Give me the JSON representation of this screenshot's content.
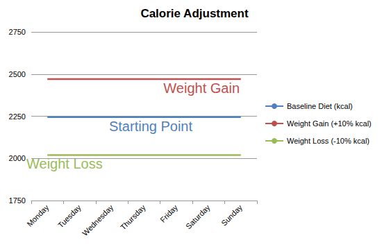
{
  "chart_data": {
    "type": "line",
    "title": "Calorie Adjustment",
    "categories": [
      "Monday",
      "Tuesday",
      "Wednesday",
      "Thursday",
      "Friday",
      "Saturday",
      "Sunday"
    ],
    "series": [
      {
        "name": "Baseline Diet (kcal)",
        "color": "#4f81bd",
        "values": [
          2245,
          2245,
          2245,
          2245,
          2245,
          2245,
          2245
        ]
      },
      {
        "name": "Weight Gain (+10% kcal)",
        "color": "#c0504d",
        "values": [
          2470,
          2470,
          2470,
          2470,
          2470,
          2470,
          2470
        ]
      },
      {
        "name": "Weight Loss (-10% kcal)",
        "color": "#9bbb59",
        "values": [
          2020,
          2020,
          2020,
          2020,
          2020,
          2020,
          2020
        ]
      }
    ],
    "annotations": [
      {
        "text": "Weight Gain",
        "series": "Weight Gain (+10% kcal)"
      },
      {
        "text": "Starting Point",
        "series": "Baseline Diet (kcal)"
      },
      {
        "text": "Weight Loss",
        "series": "Weight Loss (-10% kcal)"
      }
    ],
    "ylim": [
      1750,
      2750
    ],
    "yticks": [
      1750,
      2000,
      2250,
      2500,
      2750
    ],
    "grid": true,
    "legend": "right"
  }
}
